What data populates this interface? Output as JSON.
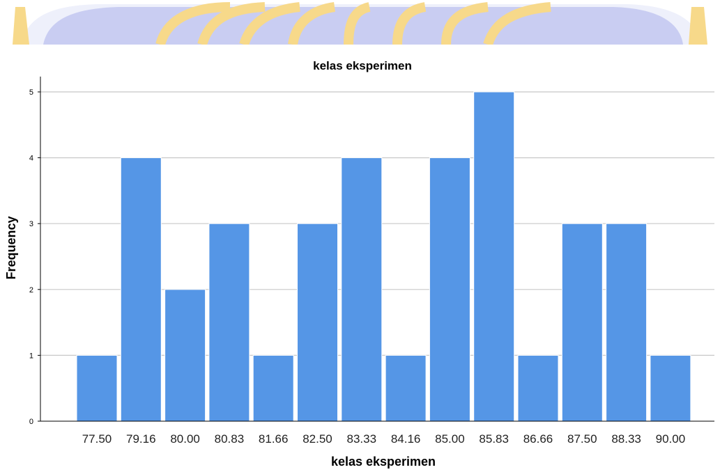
{
  "colors": {
    "bar": "#5596e6",
    "bar_edge": "#ffffff",
    "grid": "#c8c8c8",
    "axis": "#000000",
    "watermark_blue": "#c9cdf2",
    "watermark_gold": "#f7d98a"
  },
  "watermark": {
    "icon": "university-logo-watermark-icon"
  },
  "chart_data": {
    "type": "bar",
    "title": "kelas eksperimen",
    "xlabel": "kelas eksperimen",
    "ylabel": "Frequency",
    "categories": [
      "77.50",
      "79.16",
      "80.00",
      "80.83",
      "81.66",
      "82.50",
      "83.33",
      "84.16",
      "85.00",
      "85.83",
      "86.66",
      "87.50",
      "88.33",
      "90.00"
    ],
    "values": [
      1,
      4,
      2,
      3,
      1,
      3,
      4,
      1,
      4,
      5,
      1,
      3,
      3,
      1
    ],
    "ylim": [
      0,
      5
    ],
    "yticks": [
      "0",
      "1",
      "2",
      "3",
      "4",
      "5"
    ],
    "grid": true
  }
}
